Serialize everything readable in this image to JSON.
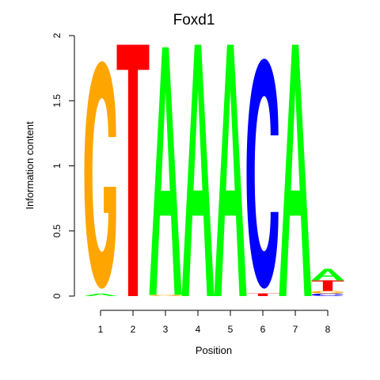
{
  "chart_data": {
    "type": "sequence-logo",
    "title": "Foxd1",
    "xlabel": "Position",
    "ylabel": "Information content",
    "ylim": [
      0,
      2
    ],
    "yticks": [
      "0",
      "0.5",
      "1",
      "1.5",
      "2"
    ],
    "ytick_values": [
      0,
      0.5,
      1,
      1.5,
      2
    ],
    "positions": [
      "1",
      "2",
      "3",
      "4",
      "5",
      "6",
      "7",
      "8"
    ],
    "colors": {
      "A": "#00ff00",
      "C": "#0000ff",
      "G": "#ffa500",
      "T": "#ff0000"
    },
    "columns": [
      {
        "position": "1",
        "letters": [
          {
            "base": "A",
            "bits": 0.02
          },
          {
            "base": "G",
            "bits": 1.82
          }
        ]
      },
      {
        "position": "2",
        "letters": [
          {
            "base": "T",
            "bits": 1.93
          }
        ]
      },
      {
        "position": "3",
        "letters": [
          {
            "base": "G",
            "bits": 0.01
          },
          {
            "base": "A",
            "bits": 1.9
          }
        ]
      },
      {
        "position": "4",
        "letters": [
          {
            "base": "A",
            "bits": 1.93
          }
        ]
      },
      {
        "position": "5",
        "letters": [
          {
            "base": "A",
            "bits": 1.93
          }
        ]
      },
      {
        "position": "6",
        "letters": [
          {
            "base": "T",
            "bits": 0.02
          },
          {
            "base": "C",
            "bits": 1.84
          }
        ]
      },
      {
        "position": "7",
        "letters": [
          {
            "base": "A",
            "bits": 1.93
          }
        ]
      },
      {
        "position": "8",
        "letters": [
          {
            "base": "C",
            "bits": 0.02
          },
          {
            "base": "G",
            "bits": 0.02
          },
          {
            "base": "T",
            "bits": 0.08
          },
          {
            "base": "A",
            "bits": 0.09
          }
        ]
      }
    ]
  }
}
